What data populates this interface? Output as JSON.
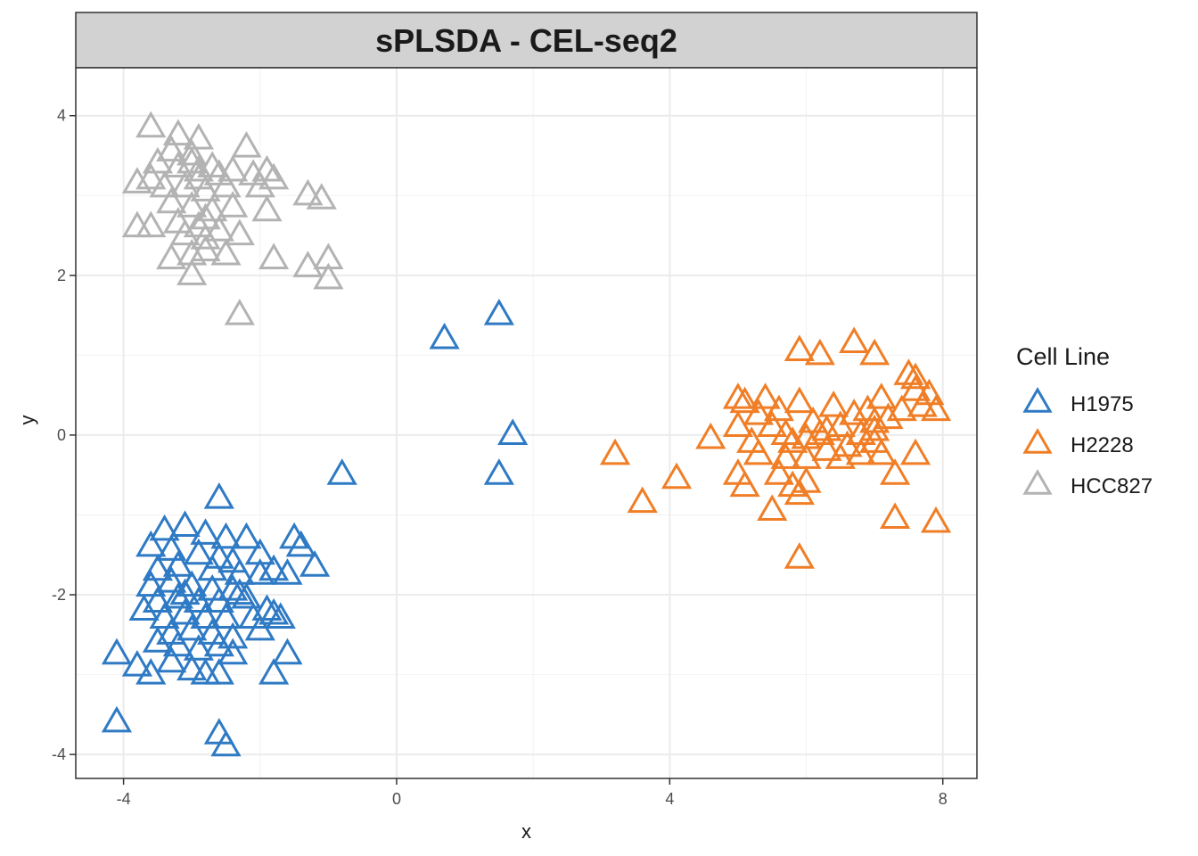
{
  "chart_data": {
    "type": "scatter",
    "title": "sPLSDA - CEL-seq2",
    "xlabel": "x",
    "ylabel": "y",
    "xlim": [
      -4.7,
      8.5
    ],
    "ylim": [
      -4.3,
      4.6
    ],
    "x_ticks": [
      -4,
      0,
      4,
      8
    ],
    "y_ticks": [
      -4,
      -2,
      0,
      2,
      4
    ],
    "grid": true,
    "legend": {
      "title": "Cell Line",
      "position": "right"
    },
    "marker": "open-triangle",
    "series": [
      {
        "name": "H1975",
        "color": "#2f7ac4",
        "points": [
          [
            0.7,
            1.2
          ],
          [
            1.5,
            1.5
          ],
          [
            1.7,
            0.0
          ],
          [
            1.5,
            -0.5
          ],
          [
            -0.8,
            -0.5
          ],
          [
            -2.6,
            -0.8
          ],
          [
            -3.4,
            -1.2
          ],
          [
            -3.1,
            -1.15
          ],
          [
            -2.8,
            -1.25
          ],
          [
            -2.5,
            -1.3
          ],
          [
            -2.2,
            -1.3
          ],
          [
            -1.5,
            -1.3
          ],
          [
            -1.4,
            -1.4
          ],
          [
            -3.6,
            -1.4
          ],
          [
            -3.3,
            -1.45
          ],
          [
            -2.9,
            -1.5
          ],
          [
            -2.6,
            -1.55
          ],
          [
            -2.4,
            -1.6
          ],
          [
            -2.0,
            -1.5
          ],
          [
            -3.5,
            -1.7
          ],
          [
            -3.2,
            -1.65
          ],
          [
            -2.7,
            -1.7
          ],
          [
            -2.3,
            -1.75
          ],
          [
            -2.0,
            -1.75
          ],
          [
            -1.8,
            -1.7
          ],
          [
            -1.6,
            -1.75
          ],
          [
            -1.2,
            -1.65
          ],
          [
            -3.6,
            -1.9
          ],
          [
            -3.3,
            -1.85
          ],
          [
            -3.0,
            -1.9
          ],
          [
            -2.7,
            -1.95
          ],
          [
            -2.4,
            -1.95
          ],
          [
            -3.5,
            -2.1
          ],
          [
            -3.2,
            -2.05
          ],
          [
            -2.9,
            -2.1
          ],
          [
            -2.6,
            -2.1
          ],
          [
            -2.2,
            -2.05
          ],
          [
            -3.4,
            -2.3
          ],
          [
            -3.1,
            -2.25
          ],
          [
            -2.8,
            -2.3
          ],
          [
            -2.5,
            -2.3
          ],
          [
            -2.1,
            -2.3
          ],
          [
            -1.7,
            -2.3
          ],
          [
            -1.8,
            -2.25
          ],
          [
            -3.3,
            -2.5
          ],
          [
            -3.0,
            -2.45
          ],
          [
            -2.7,
            -2.5
          ],
          [
            -2.4,
            -2.55
          ],
          [
            -2.0,
            -2.45
          ],
          [
            -3.5,
            -2.6
          ],
          [
            -3.2,
            -2.65
          ],
          [
            -2.9,
            -2.7
          ],
          [
            -2.6,
            -2.65
          ],
          [
            -2.4,
            -2.75
          ],
          [
            -1.6,
            -2.75
          ],
          [
            -4.1,
            -2.75
          ],
          [
            -3.8,
            -2.9
          ],
          [
            -3.6,
            -3.0
          ],
          [
            -3.3,
            -2.85
          ],
          [
            -3.0,
            -2.95
          ],
          [
            -2.8,
            -3.0
          ],
          [
            -2.6,
            -3.0
          ],
          [
            -1.8,
            -3.0
          ],
          [
            -4.1,
            -3.6
          ],
          [
            -2.6,
            -3.75
          ],
          [
            -2.5,
            -3.9
          ],
          [
            -3.7,
            -2.2
          ],
          [
            -3.1,
            -2.0
          ],
          [
            -2.3,
            -2.0
          ],
          [
            -1.9,
            -2.2
          ]
        ]
      },
      {
        "name": "H2228",
        "color": "#f07e26",
        "points": [
          [
            3.2,
            -0.25
          ],
          [
            3.6,
            -0.85
          ],
          [
            4.1,
            -0.55
          ],
          [
            4.6,
            -0.05
          ],
          [
            5.0,
            0.45
          ],
          [
            5.1,
            0.4
          ],
          [
            5.0,
            0.1
          ],
          [
            5.2,
            -0.1
          ],
          [
            5.3,
            -0.25
          ],
          [
            5.0,
            -0.5
          ],
          [
            5.1,
            -0.65
          ],
          [
            5.4,
            0.45
          ],
          [
            5.6,
            0.3
          ],
          [
            5.9,
            0.4
          ],
          [
            5.5,
            0.1
          ],
          [
            5.7,
            0.0
          ],
          [
            5.8,
            -0.1
          ],
          [
            6.0,
            -0.05
          ],
          [
            6.1,
            0.15
          ],
          [
            6.2,
            0.0
          ],
          [
            6.3,
            -0.2
          ],
          [
            6.4,
            0.35
          ],
          [
            6.5,
            0.1
          ],
          [
            6.6,
            -0.15
          ],
          [
            6.7,
            0.25
          ],
          [
            6.8,
            0.0
          ],
          [
            6.9,
            0.3
          ],
          [
            7.0,
            0.15
          ],
          [
            7.1,
            0.45
          ],
          [
            7.2,
            0.2
          ],
          [
            7.0,
            -0.1
          ],
          [
            7.1,
            -0.25
          ],
          [
            7.3,
            -0.5
          ],
          [
            7.4,
            0.3
          ],
          [
            7.6,
            0.55
          ],
          [
            7.7,
            0.35
          ],
          [
            7.8,
            0.5
          ],
          [
            7.9,
            0.3
          ],
          [
            7.6,
            -0.25
          ],
          [
            5.6,
            -0.5
          ],
          [
            5.8,
            -0.65
          ],
          [
            5.9,
            -0.75
          ],
          [
            6.0,
            -0.6
          ],
          [
            5.5,
            -0.95
          ],
          [
            6.0,
            -0.3
          ],
          [
            5.9,
            1.05
          ],
          [
            6.2,
            1.0
          ],
          [
            6.7,
            1.15
          ],
          [
            7.0,
            1.0
          ],
          [
            7.5,
            0.75
          ],
          [
            7.6,
            0.7
          ],
          [
            7.3,
            -1.05
          ],
          [
            7.9,
            -1.1
          ],
          [
            5.9,
            -1.55
          ],
          [
            6.3,
            0.05
          ],
          [
            5.7,
            -0.3
          ],
          [
            6.5,
            -0.3
          ],
          [
            6.8,
            -0.25
          ],
          [
            7.0,
            0.05
          ],
          [
            5.3,
            0.25
          ]
        ]
      },
      {
        "name": "HCC827",
        "color": "#b3b3b3",
        "points": [
          [
            -3.6,
            3.85
          ],
          [
            -3.2,
            3.75
          ],
          [
            -2.9,
            3.7
          ],
          [
            -2.2,
            3.6
          ],
          [
            -3.3,
            3.55
          ],
          [
            -3.0,
            3.5
          ],
          [
            -2.7,
            3.35
          ],
          [
            -2.4,
            3.3
          ],
          [
            -3.5,
            3.4
          ],
          [
            -3.2,
            3.35
          ],
          [
            -2.9,
            3.3
          ],
          [
            -2.6,
            3.25
          ],
          [
            -2.1,
            3.25
          ],
          [
            -1.9,
            3.3
          ],
          [
            -1.8,
            3.2
          ],
          [
            -3.8,
            3.15
          ],
          [
            -3.6,
            3.2
          ],
          [
            -3.4,
            3.1
          ],
          [
            -3.1,
            3.1
          ],
          [
            -2.8,
            3.05
          ],
          [
            -2.5,
            3.1
          ],
          [
            -2.0,
            3.1
          ],
          [
            -1.3,
            3.0
          ],
          [
            -1.1,
            2.95
          ],
          [
            -3.3,
            2.9
          ],
          [
            -3.0,
            2.85
          ],
          [
            -2.7,
            2.8
          ],
          [
            -2.4,
            2.85
          ],
          [
            -1.9,
            2.8
          ],
          [
            -3.2,
            2.65
          ],
          [
            -2.9,
            2.6
          ],
          [
            -2.6,
            2.55
          ],
          [
            -2.3,
            2.5
          ],
          [
            -3.8,
            2.6
          ],
          [
            -3.6,
            2.6
          ],
          [
            -3.1,
            2.5
          ],
          [
            -2.8,
            2.45
          ],
          [
            -3.3,
            2.2
          ],
          [
            -3.0,
            2.25
          ],
          [
            -2.8,
            2.3
          ],
          [
            -2.5,
            2.25
          ],
          [
            -1.8,
            2.2
          ],
          [
            -1.3,
            2.1
          ],
          [
            -1.0,
            2.2
          ],
          [
            -1.0,
            1.95
          ],
          [
            -3.0,
            2.0
          ],
          [
            -2.3,
            1.5
          ],
          [
            -2.9,
            3.2
          ],
          [
            -3.0,
            3.4
          ],
          [
            -2.8,
            2.7
          ]
        ]
      }
    ]
  }
}
